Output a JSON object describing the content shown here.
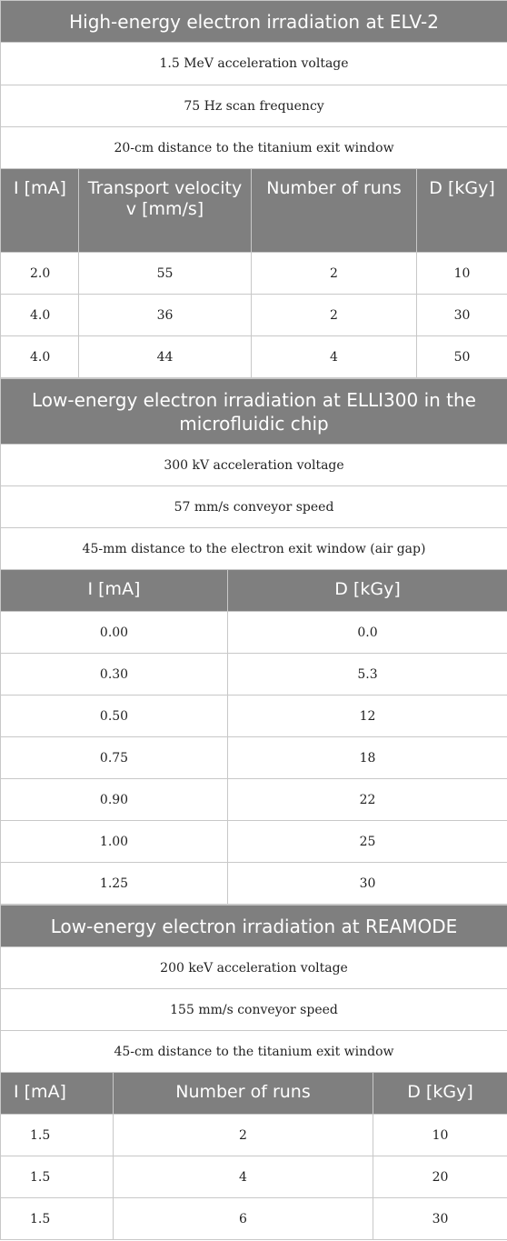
{
  "sections": [
    {
      "title": "High-energy electron irradiation at ELV-2",
      "params": [
        "1.5 MeV acceleration voltage",
        "75 Hz scan frequency",
        "20-cm distance to the titanium exit window"
      ],
      "headers": [
        "I [mA]",
        "Transport velocity v [mm/s]",
        "Number of runs",
        "D [kGy]"
      ],
      "rows": [
        [
          "2.0",
          "55",
          "2",
          "10"
        ],
        [
          "4.0",
          "36",
          "2",
          "30"
        ],
        [
          "4.0",
          "44",
          "4",
          "50"
        ]
      ]
    },
    {
      "title": "Low-energy electron irradiation at ELLI300 in the microfluidic chip",
      "params": [
        "300 kV acceleration voltage",
        "57 mm/s conveyor speed",
        "45-mm distance to the electron exit window (air gap)"
      ],
      "headers": [
        "I [mA]",
        "D [kGy]"
      ],
      "rows": [
        [
          "0.00",
          "0.0"
        ],
        [
          "0.30",
          "5.3"
        ],
        [
          "0.50",
          "12"
        ],
        [
          "0.75",
          "18"
        ],
        [
          "0.90",
          "22"
        ],
        [
          "1.00",
          "25"
        ],
        [
          "1.25",
          "30"
        ]
      ]
    },
    {
      "title": "Low-energy electron irradiation at REAMODE",
      "params": [
        "200 keV acceleration voltage",
        "155 mm/s conveyor speed",
        "45-cm distance to the titanium exit window"
      ],
      "headers": [
        "I [mA]",
        "Number of runs",
        "D [kGy]"
      ],
      "rows": [
        [
          "1.5",
          "2",
          "10"
        ],
        [
          "1.5",
          "4",
          "20"
        ],
        [
          "1.5",
          "6",
          "30"
        ]
      ]
    }
  ]
}
